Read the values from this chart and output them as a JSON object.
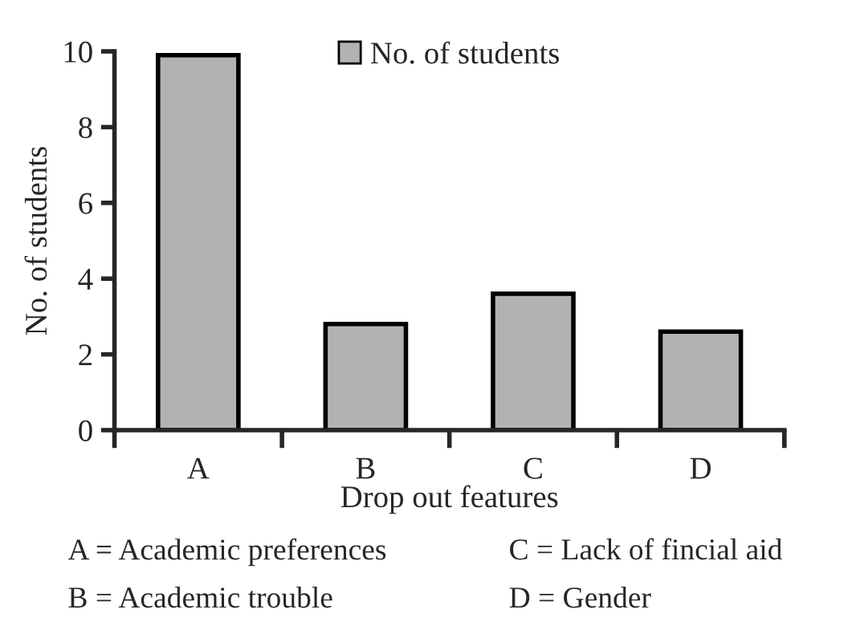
{
  "chart_data": {
    "type": "bar",
    "xlabel": "Drop out features",
    "ylabel": "No. of students",
    "categories": [
      "A",
      "B",
      "C",
      "D"
    ],
    "series": [
      {
        "name": "No. of students",
        "color": "#b2b2b2",
        "values": [
          9.9,
          2.8,
          3.6,
          2.6
        ]
      }
    ],
    "ylim": [
      0,
      10
    ],
    "yticks": [
      0,
      2,
      4,
      6,
      8,
      10
    ],
    "legend": "top",
    "grid": false,
    "annotations": [
      "A = Academic preferences",
      "C = Lack of fincial aid",
      "B = Academic trouble",
      "D = Gender"
    ]
  }
}
